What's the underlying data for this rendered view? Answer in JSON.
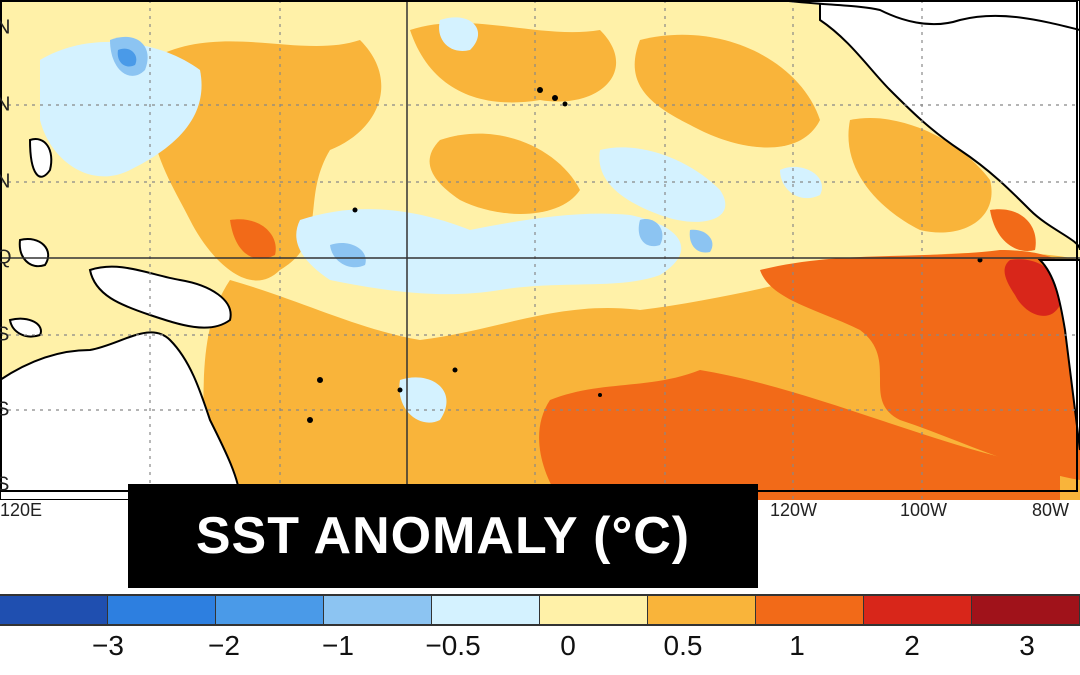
{
  "title": "SST ANOMALY (°C)",
  "map": {
    "lat_labels": [
      "N",
      "N",
      "N",
      "Q",
      "S",
      "S",
      "S"
    ],
    "lon_labels": [
      "120E",
      "120W",
      "100W",
      "80W"
    ]
  },
  "colorbar": {
    "colors": [
      "#1f4fb0",
      "#2d7fe0",
      "#4a9ae8",
      "#8cc4f2",
      "#d4f2ff",
      "#fff1a8",
      "#f9b43a",
      "#f26a18",
      "#d8261a",
      "#a0121a"
    ],
    "ticks": [
      "−3",
      "−2",
      "−1",
      "−0.5",
      "0",
      "0.5",
      "1",
      "2",
      "3"
    ]
  },
  "palette": {
    "ocean_base": "#fff1a8",
    "warm": "#f9b43a",
    "hot": "#f26a18",
    "very_hot": "#d8261a",
    "cool": "#d4f2ff",
    "cold": "#8cc4f2",
    "colder": "#4a9ae8",
    "land": "#ffffff"
  }
}
